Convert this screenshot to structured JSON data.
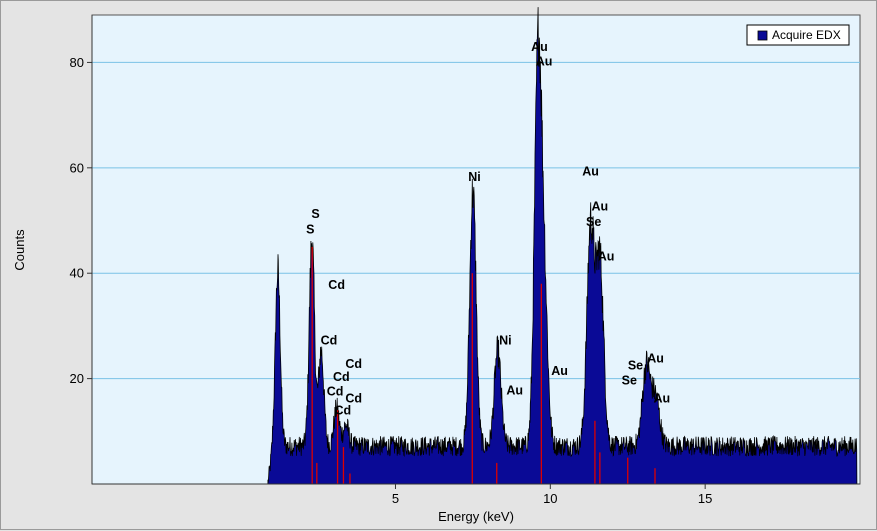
{
  "chart_data": {
    "type": "area",
    "title": "",
    "xlabel": "Energy (keV)",
    "ylabel": "Counts",
    "xlim": [
      -4.8,
      20
    ],
    "ylim": [
      0,
      89
    ],
    "x_ticks": [
      5,
      10,
      15
    ],
    "y_ticks": [
      20,
      40,
      60,
      80
    ],
    "grid": "horizontal",
    "legend_position": "top-right",
    "colors": {
      "plot_background": "#e6f4fd",
      "fill": "#0a0a96",
      "outline": "#000000",
      "gridline": "#7ac2e6",
      "marker_lines": "#dd0000",
      "frame": "#e4e4e4"
    },
    "series": [
      {
        "name": "Acquire EDX",
        "background_level": 7,
        "peaks": [
          {
            "x": 1.2,
            "y": 40
          },
          {
            "x": 2.3,
            "y": 46
          },
          {
            "x": 2.6,
            "y": 25
          },
          {
            "x": 3.1,
            "y": 14
          },
          {
            "x": 3.4,
            "y": 11
          },
          {
            "x": 7.5,
            "y": 55
          },
          {
            "x": 8.3,
            "y": 25
          },
          {
            "x": 9.6,
            "y": 78
          },
          {
            "x": 9.8,
            "y": 36
          },
          {
            "x": 11.3,
            "y": 48
          },
          {
            "x": 11.6,
            "y": 42
          },
          {
            "x": 13.1,
            "y": 22
          },
          {
            "x": 13.4,
            "y": 16
          }
        ]
      }
    ],
    "element_markers": [
      {
        "x": 2.31,
        "height": 45
      },
      {
        "x": 2.46,
        "height": 4
      },
      {
        "x": 3.13,
        "height": 14
      },
      {
        "x": 3.32,
        "height": 7
      },
      {
        "x": 3.53,
        "height": 2
      },
      {
        "x": 7.48,
        "height": 40
      },
      {
        "x": 8.27,
        "height": 4
      },
      {
        "x": 9.71,
        "height": 38
      },
      {
        "x": 11.44,
        "height": 12
      },
      {
        "x": 11.6,
        "height": 6
      },
      {
        "x": 12.5,
        "height": 5
      },
      {
        "x": 13.38,
        "height": 3
      }
    ],
    "annotations": [
      {
        "text": "S",
        "x": 2.42,
        "y": 50.5
      },
      {
        "text": "S",
        "x": 2.25,
        "y": 47.5
      },
      {
        "text": "Cd",
        "x": 3.1,
        "y": 37.0
      },
      {
        "text": "Cd",
        "x": 2.85,
        "y": 26.5
      },
      {
        "text": "Cd",
        "x": 3.65,
        "y": 22.0
      },
      {
        "text": "Cd",
        "x": 3.25,
        "y": 19.5
      },
      {
        "text": "Cd",
        "x": 3.05,
        "y": 16.8
      },
      {
        "text": "Cd",
        "x": 3.65,
        "y": 15.5
      },
      {
        "text": "Cd",
        "x": 3.3,
        "y": 13.2
      },
      {
        "text": "Ni",
        "x": 7.55,
        "y": 57.5
      },
      {
        "text": "Ni",
        "x": 8.55,
        "y": 26.5
      },
      {
        "text": "Au",
        "x": 8.85,
        "y": 17.0
      },
      {
        "text": "Au",
        "x": 9.65,
        "y": 82.2
      },
      {
        "text": "Au",
        "x": 9.8,
        "y": 79.4
      },
      {
        "text": "Au",
        "x": 10.3,
        "y": 20.7
      },
      {
        "text": "Au",
        "x": 11.3,
        "y": 58.5
      },
      {
        "text": "Au",
        "x": 11.6,
        "y": 51.9
      },
      {
        "text": "Se",
        "x": 11.4,
        "y": 49.0
      },
      {
        "text": "Au",
        "x": 11.8,
        "y": 42.4
      },
      {
        "text": "Se",
        "x": 12.75,
        "y": 21.7
      },
      {
        "text": "Se",
        "x": 12.55,
        "y": 18.9
      },
      {
        "text": "Au",
        "x": 13.4,
        "y": 23.1
      },
      {
        "text": "Au",
        "x": 13.6,
        "y": 15.5
      }
    ]
  }
}
